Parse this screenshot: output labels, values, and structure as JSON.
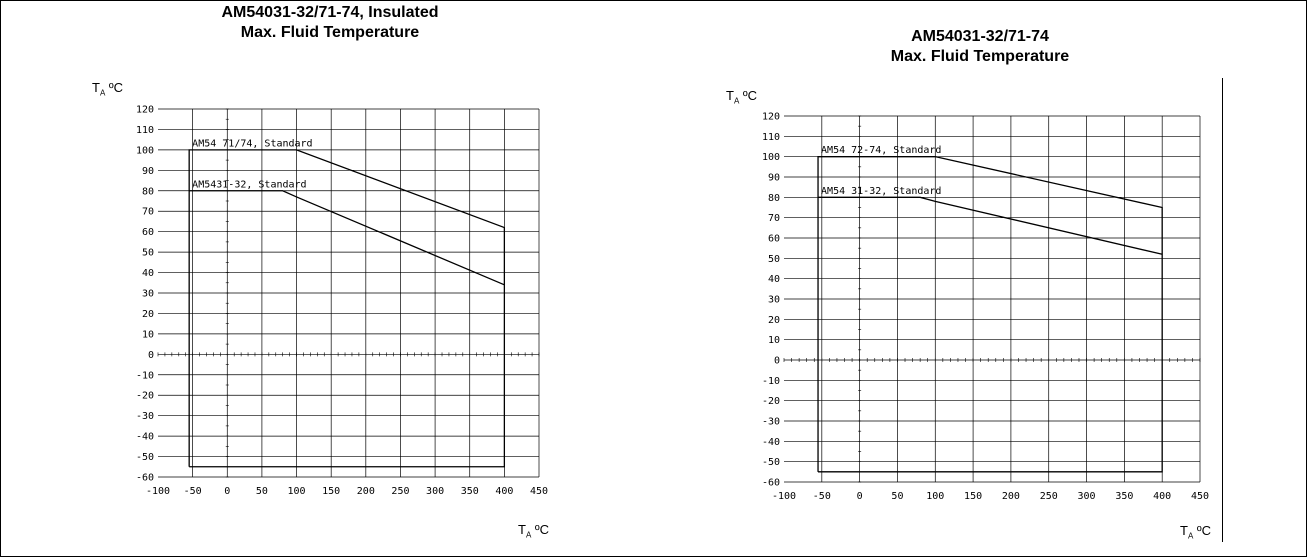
{
  "chart_data": [
    {
      "type": "line",
      "title_line1": "AM54031-32/71-74, Insulated",
      "title_line2": "Max. Fluid Temperature",
      "ylabel_main": "T",
      "ylabel_sub": "A",
      "ylabel_unit": " ºC",
      "xlabel_main": "T",
      "xlabel_sub": "A",
      "xlabel_unit": " ºC",
      "xlim": [
        -100,
        450
      ],
      "ylim": [
        -60,
        120
      ],
      "x_ticks": [
        -100,
        -50,
        0,
        50,
        100,
        150,
        200,
        250,
        300,
        350,
        400,
        450
      ],
      "y_ticks": [
        120,
        110,
        100,
        90,
        80,
        70,
        60,
        50,
        40,
        30,
        20,
        10,
        0,
        -10,
        -20,
        -30,
        -40,
        -50,
        -60
      ],
      "series": [
        {
          "name": "AM54 71/74, Standard",
          "points": [
            [
              -55,
              -55
            ],
            [
              -55,
              100
            ],
            [
              100,
              100
            ],
            [
              400,
              62
            ],
            [
              400,
              -55
            ],
            [
              -55,
              -55
            ]
          ]
        },
        {
          "name": "AM5431-32, Standard",
          "points": [
            [
              -55,
              80
            ],
            [
              80,
              80
            ],
            [
              100,
              77
            ],
            [
              400,
              34
            ]
          ]
        }
      ]
    },
    {
      "type": "line",
      "title_line1": "AM54031-32/71-74",
      "title_line2": "Max. Fluid Temperature",
      "ylabel_main": "T",
      "ylabel_sub": "A",
      "ylabel_unit": " ºC",
      "xlabel_main": "T",
      "xlabel_sub": "A",
      "xlabel_unit": " ºC",
      "xlim": [
        -100,
        450
      ],
      "ylim": [
        -60,
        120
      ],
      "x_ticks": [
        -100,
        -50,
        0,
        50,
        100,
        150,
        200,
        250,
        300,
        350,
        400,
        450
      ],
      "y_ticks": [
        120,
        110,
        100,
        90,
        80,
        70,
        60,
        50,
        40,
        30,
        20,
        10,
        0,
        -10,
        -20,
        -30,
        -40,
        -50,
        -60
      ],
      "series": [
        {
          "name": "AM54 72-74, Standard",
          "points": [
            [
              -55,
              -55
            ],
            [
              -55,
              100
            ],
            [
              100,
              100
            ],
            [
              400,
              75
            ],
            [
              400,
              -55
            ],
            [
              -55,
              -55
            ]
          ]
        },
        {
          "name": "AM54 31-32, Standard",
          "points": [
            [
              -55,
              80
            ],
            [
              80,
              80
            ],
            [
              100,
              78
            ],
            [
              400,
              52
            ]
          ]
        }
      ]
    }
  ]
}
